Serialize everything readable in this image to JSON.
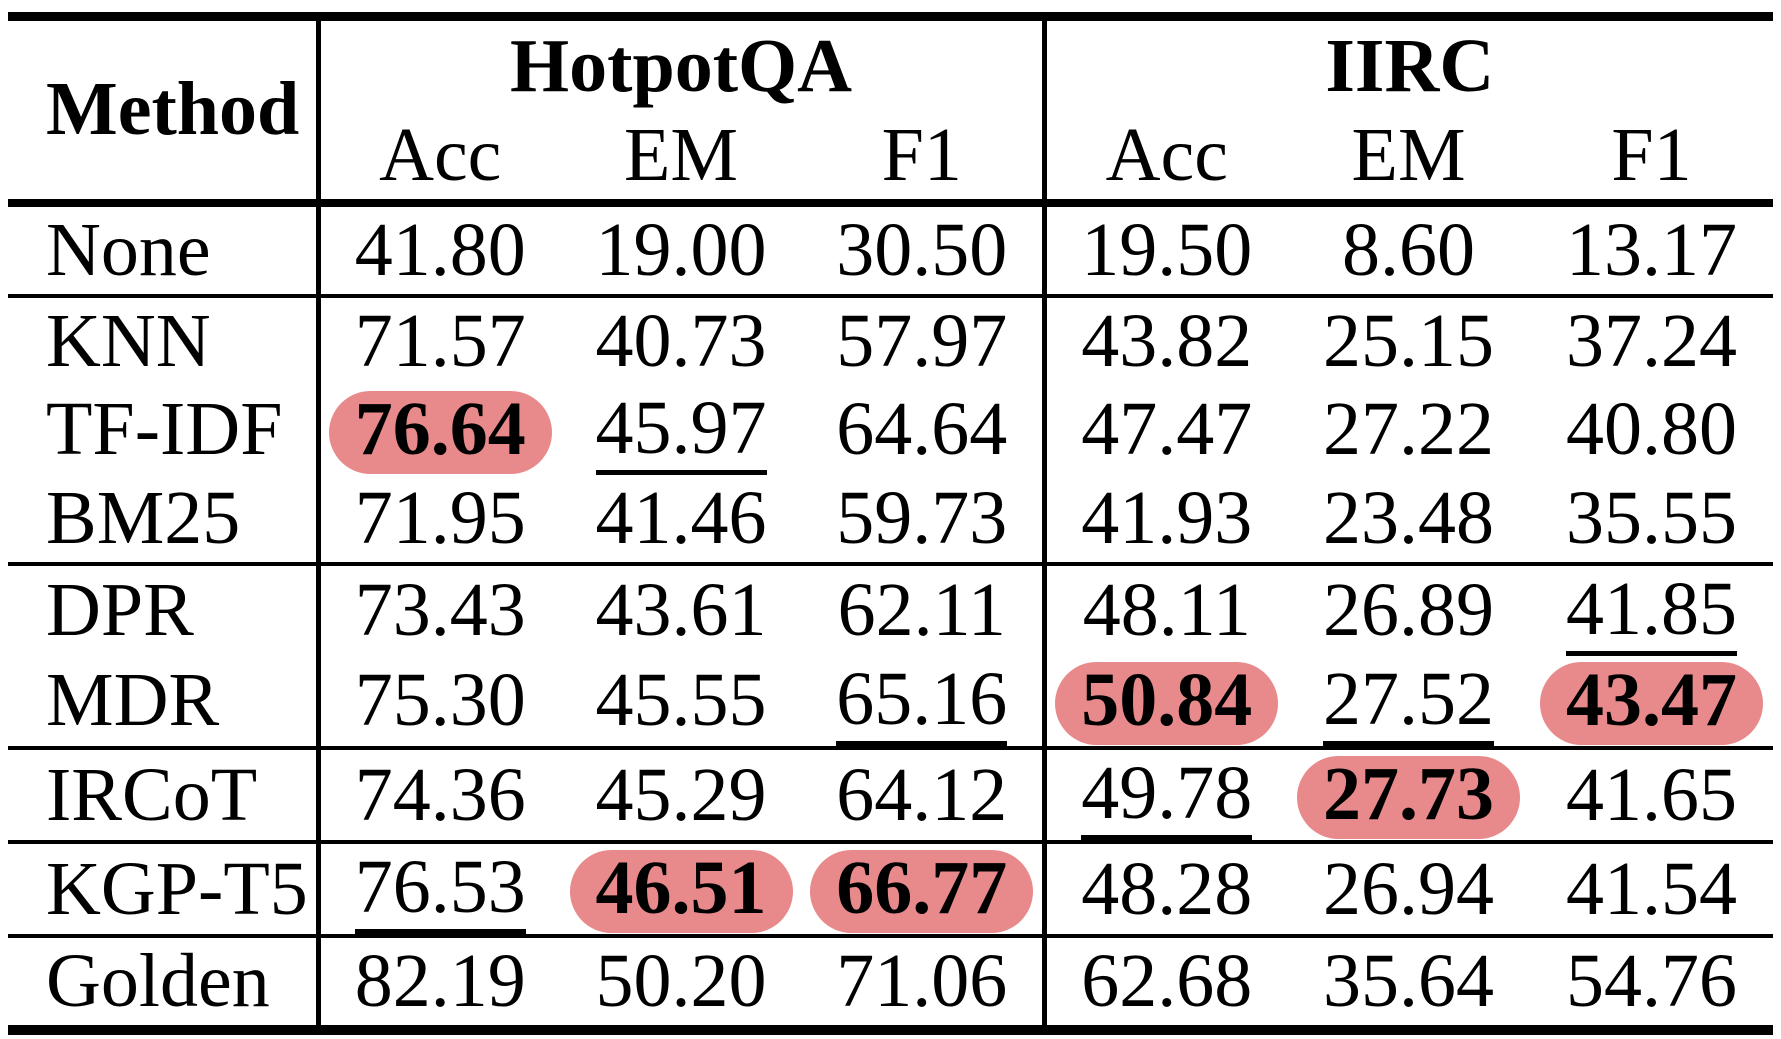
{
  "page": {
    "background": "#ffffff"
  },
  "table": {
    "highlight_color": "#e8898b",
    "text_color": "#000000",
    "header": {
      "method_label": "Method",
      "groups": [
        {
          "label": "HotpotQA",
          "columns": [
            "Acc",
            "EM",
            "F1"
          ]
        },
        {
          "label": "IIRC",
          "columns": [
            "Acc",
            "EM",
            "F1"
          ]
        }
      ]
    },
    "row_groups": [
      {
        "rows": [
          {
            "method": "None",
            "values": [
              {
                "text": "41.80",
                "emphasis": "none"
              },
              {
                "text": "19.00",
                "emphasis": "none"
              },
              {
                "text": "30.50",
                "emphasis": "none"
              },
              {
                "text": "19.50",
                "emphasis": "none"
              },
              {
                "text": "8.60",
                "emphasis": "none"
              },
              {
                "text": "13.17",
                "emphasis": "none"
              }
            ]
          }
        ]
      },
      {
        "rows": [
          {
            "method": "KNN",
            "values": [
              {
                "text": "71.57",
                "emphasis": "none"
              },
              {
                "text": "40.73",
                "emphasis": "none"
              },
              {
                "text": "57.97",
                "emphasis": "none"
              },
              {
                "text": "43.82",
                "emphasis": "none"
              },
              {
                "text": "25.15",
                "emphasis": "none"
              },
              {
                "text": "37.24",
                "emphasis": "none"
              }
            ]
          },
          {
            "method": "TF-IDF",
            "values": [
              {
                "text": "76.64",
                "emphasis": "highlight"
              },
              {
                "text": "45.97",
                "emphasis": "underline"
              },
              {
                "text": "64.64",
                "emphasis": "none"
              },
              {
                "text": "47.47",
                "emphasis": "none"
              },
              {
                "text": "27.22",
                "emphasis": "none"
              },
              {
                "text": "40.80",
                "emphasis": "none"
              }
            ]
          },
          {
            "method": "BM25",
            "values": [
              {
                "text": "71.95",
                "emphasis": "none"
              },
              {
                "text": "41.46",
                "emphasis": "none"
              },
              {
                "text": "59.73",
                "emphasis": "none"
              },
              {
                "text": "41.93",
                "emphasis": "none"
              },
              {
                "text": "23.48",
                "emphasis": "none"
              },
              {
                "text": "35.55",
                "emphasis": "none"
              }
            ]
          }
        ]
      },
      {
        "rows": [
          {
            "method": "DPR",
            "values": [
              {
                "text": "73.43",
                "emphasis": "none"
              },
              {
                "text": "43.61",
                "emphasis": "none"
              },
              {
                "text": "62.11",
                "emphasis": "none"
              },
              {
                "text": "48.11",
                "emphasis": "none"
              },
              {
                "text": "26.89",
                "emphasis": "none"
              },
              {
                "text": "41.85",
                "emphasis": "underline"
              }
            ]
          },
          {
            "method": "MDR",
            "values": [
              {
                "text": "75.30",
                "emphasis": "none"
              },
              {
                "text": "45.55",
                "emphasis": "none"
              },
              {
                "text": "65.16",
                "emphasis": "underline"
              },
              {
                "text": "50.84",
                "emphasis": "highlight"
              },
              {
                "text": "27.52",
                "emphasis": "underline"
              },
              {
                "text": "43.47",
                "emphasis": "highlight"
              }
            ]
          }
        ]
      },
      {
        "rows": [
          {
            "method": "IRCoT",
            "values": [
              {
                "text": "74.36",
                "emphasis": "none"
              },
              {
                "text": "45.29",
                "emphasis": "none"
              },
              {
                "text": "64.12",
                "emphasis": "none"
              },
              {
                "text": "49.78",
                "emphasis": "underline"
              },
              {
                "text": "27.73",
                "emphasis": "highlight"
              },
              {
                "text": "41.65",
                "emphasis": "none"
              }
            ]
          }
        ]
      },
      {
        "rows": [
          {
            "method": "KGP-T5",
            "values": [
              {
                "text": "76.53",
                "emphasis": "underline"
              },
              {
                "text": "46.51",
                "emphasis": "highlight"
              },
              {
                "text": "66.77",
                "emphasis": "highlight"
              },
              {
                "text": "48.28",
                "emphasis": "none"
              },
              {
                "text": "26.94",
                "emphasis": "none"
              },
              {
                "text": "41.54",
                "emphasis": "none"
              }
            ]
          }
        ]
      },
      {
        "rows": [
          {
            "method": "Golden",
            "values": [
              {
                "text": "82.19",
                "emphasis": "none"
              },
              {
                "text": "50.20",
                "emphasis": "none"
              },
              {
                "text": "71.06",
                "emphasis": "none"
              },
              {
                "text": "62.68",
                "emphasis": "none"
              },
              {
                "text": "35.64",
                "emphasis": "none"
              },
              {
                "text": "54.76",
                "emphasis": "none"
              }
            ]
          }
        ]
      }
    ]
  }
}
